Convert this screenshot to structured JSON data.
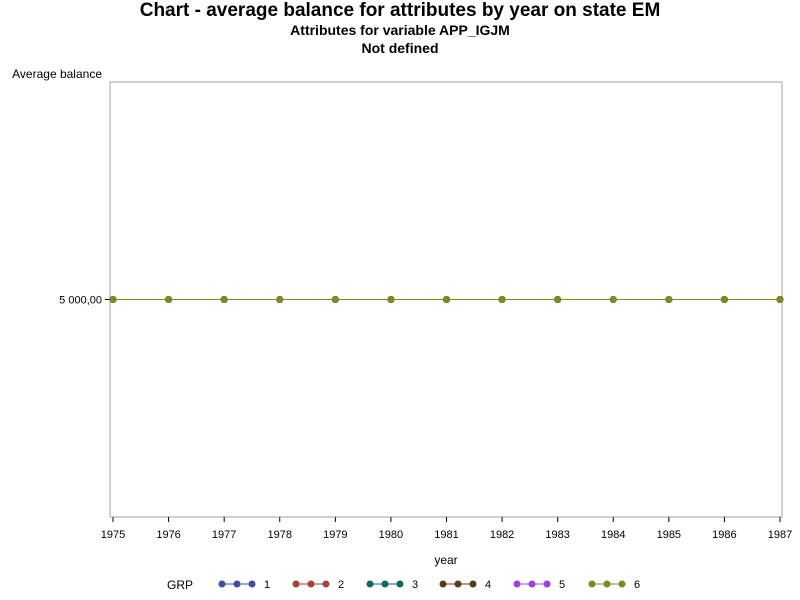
{
  "chart_data": {
    "type": "line",
    "title": "Chart - average balance for attributes by year on state EM",
    "subtitles": [
      "Attributes for variable APP_IGJM",
      "Not defined"
    ],
    "xlabel": "year",
    "ylabel": "Average balance",
    "x": [
      1975,
      1976,
      1977,
      1978,
      1979,
      1980,
      1981,
      1982,
      1983,
      1984,
      1985,
      1986,
      1987
    ],
    "y_ticks": [
      {
        "value": 5000,
        "label": "5 000,00"
      }
    ],
    "ylim": [
      4500,
      5500
    ],
    "legend_title": "GRP",
    "legend_position": "bottom",
    "series": [
      {
        "name": "1",
        "color": "#3F4FA0",
        "values": [
          5000,
          5000,
          5000,
          5000,
          5000,
          5000,
          5000,
          5000,
          5000,
          5000,
          5000,
          5000,
          5000
        ]
      },
      {
        "name": "2",
        "color": "#A8413A",
        "values": [
          5000,
          5000,
          5000,
          5000,
          5000,
          5000,
          5000,
          5000,
          5000,
          5000,
          5000,
          5000,
          5000
        ]
      },
      {
        "name": "3",
        "color": "#0B6B60",
        "values": [
          5000,
          5000,
          5000,
          5000,
          5000,
          5000,
          5000,
          5000,
          5000,
          5000,
          5000,
          5000,
          5000
        ]
      },
      {
        "name": "4",
        "color": "#5A3A12",
        "values": [
          5000,
          5000,
          5000,
          5000,
          5000,
          5000,
          5000,
          5000,
          5000,
          5000,
          5000,
          5000,
          5000
        ]
      },
      {
        "name": "5",
        "color": "#A040E0",
        "values": [
          5000,
          5000,
          5000,
          5000,
          5000,
          5000,
          5000,
          5000,
          5000,
          5000,
          5000,
          5000,
          5000
        ]
      },
      {
        "name": "6",
        "color": "#7E8A1E",
        "values": [
          5000,
          5000,
          5000,
          5000,
          5000,
          5000,
          5000,
          5000,
          5000,
          5000,
          5000,
          5000,
          5000
        ]
      }
    ]
  }
}
